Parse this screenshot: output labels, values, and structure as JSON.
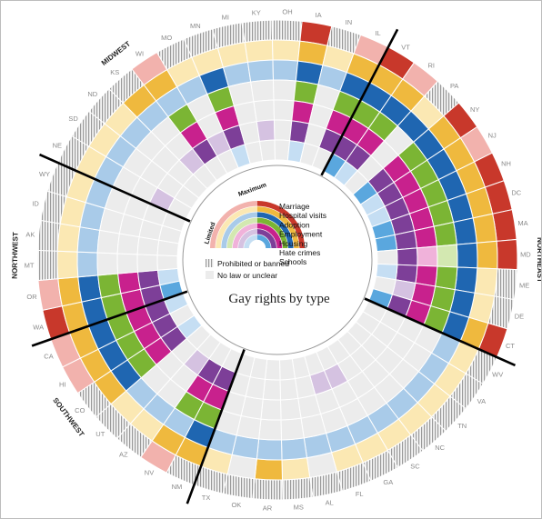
{
  "chart_data": {
    "type": "radial-heatmap",
    "title": "Gay rights by type",
    "rings": [
      "Marriage",
      "Hospital visits",
      "Adoption",
      "Employment",
      "Housing",
      "Hate crimes",
      "Schools"
    ],
    "scale_labels": {
      "low": "Limited",
      "high": "Maximum"
    },
    "legend": {
      "prohibited": "Prohibited or banned",
      "none": "No law or unclear"
    },
    "colors": {
      "Marriage": {
        "max": "#c8382b",
        "lim": "#f2b2ad"
      },
      "Hospital visits": {
        "max": "#efb93e",
        "lim": "#fbe8b3"
      },
      "Adoption": {
        "max": "#1f66b1",
        "lim": "#a9cbe9"
      },
      "Employment": {
        "max": "#7bb534",
        "lim": "#d3e8b1"
      },
      "Housing": {
        "max": "#c8218d",
        "lim": "#f0b2da"
      },
      "Hate crimes": {
        "max": "#7d3f98",
        "lim": "#d5c2e1"
      },
      "Schools": {
        "max": "#5aa7de",
        "lim": "#c5def3"
      },
      "none": "#ececec",
      "prohibited_stripe": "#9a9a9a"
    },
    "regions": [
      {
        "name": "NORTHEAST",
        "states": [
          "VT",
          "RI",
          "PA",
          "NY",
          "NJ",
          "NH",
          "DC",
          "DE",
          "MA",
          "MD",
          "ME",
          "CT"
        ]
      },
      {
        "name": "SOUTHEAST",
        "states": [
          "WV",
          "VA",
          "TN",
          "NC",
          "SC",
          "GA",
          "FL",
          "AL",
          "MS",
          "AR",
          "OK",
          "TX"
        ]
      },
      {
        "name": "SOUTHWEST",
        "states": [
          "NM",
          "NV",
          "AZ",
          "UT",
          "CO",
          "HI",
          "CA"
        ]
      },
      {
        "name": "NORTHWEST",
        "states": [
          "WA",
          "OR",
          "MT",
          "AK",
          "ID",
          "WY"
        ]
      },
      {
        "name": "MIDWEST",
        "states": [
          "NE",
          "SD",
          "ND",
          "KS",
          "WI",
          "MO",
          "MN",
          "MI",
          "KY",
          "OH",
          "IA",
          "IN",
          "IL"
        ]
      }
    ],
    "states": [
      "VT",
      "RI",
      "PA",
      "NY",
      "NJ",
      "NH",
      "DC",
      "MA",
      "MD",
      "ME",
      "DE",
      "CT",
      "WV",
      "VA",
      "TN",
      "NC",
      "SC",
      "GA",
      "FL",
      "AL",
      "MS",
      "AR",
      "OK",
      "TX",
      "NM",
      "NV",
      "AZ",
      "UT",
      "CO",
      "HI",
      "CA",
      "WA",
      "OR",
      "MT",
      "AK",
      "ID",
      "WY",
      "NE",
      "SD",
      "ND",
      "KS",
      "WI",
      "MO",
      "MN",
      "MI",
      "KY",
      "OH",
      "IA",
      "IN",
      "IL"
    ],
    "values_legend": {
      "M": "maximum",
      "L": "limited",
      "N": "no law or unclear",
      "P": "prohibited or banned"
    },
    "values": {
      "VT": "MMMMMMM",
      "RI": "LMMMMML",
      "PA": "PLMNNNN",
      "NY": "MMMMMMM",
      "NJ": "LMMMMML",
      "NH": "MMMMMML",
      "DC": "MMMMMMM",
      "MA": "MMMMMMM",
      "MD": "MMMLLMN",
      "ME": "PLMMMML",
      "DE": "PLMMMLN",
      "CT": "MMMMMMM",
      "WV": "PLLNNNN",
      "VA": "PLLNNNN",
      "TN": "PLLNNNN",
      "NC": "PLLNNNN",
      "SC": "PLLNNNN",
      "GA": "PLLNNLN",
      "FL": "PLLNNLN",
      "AL": "PNLNNNN",
      "MS": "PLLNNNN",
      "AR": "PMLNNNN",
      "OK": "PNLNNNN",
      "TX": "PLLNNNN",
      "NM": "PMMMMMN",
      "NV": "LMLMMMN",
      "AZ": "PLLNNLN",
      "UT": "PLLNNNN",
      "CO": "PMMMMML",
      "HI": "LMMMMMN",
      "CA": "LMMMMML",
      "WA": "MMMMMMM",
      "OR": "LMMMMML",
      "MT": "PLLNNNN",
      "AK": "PLLNNNN",
      "ID": "PLLNNNN",
      "WY": "PLLNNNN",
      "NE": "PLLNNLN",
      "SD": "PLLNNNN",
      "ND": "PLLNNNN",
      "KS": "PMLNNLN",
      "WI": "LMLMMMN",
      "MO": "PLLNNLN",
      "MN": "PLMMMML",
      "MI": "PLLNNNN",
      "KY": "PLLNNLN",
      "OH": "PLLNNNN",
      "IA": "MMMMMML",
      "IN": "PLLNNNN",
      "IL": "LMMMMMN"
    },
    "legend_placement": "center"
  }
}
